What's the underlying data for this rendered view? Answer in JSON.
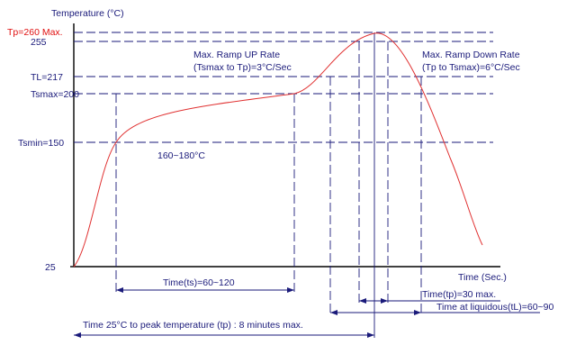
{
  "diagram": {
    "y_axis_title": "Temperature (°C)",
    "x_axis_title": "Time (Sec.)",
    "y_labels": {
      "tp": "Tp=260 Max.",
      "peak": "255",
      "tl": "TL=217",
      "tsmax": "Tsmax=200",
      "tsmin": "Tsmin=150",
      "base": "25"
    },
    "annotations": {
      "ramp_up_line1": "Max. Ramp UP Rate",
      "ramp_up_line2": "(Tsmax to Tp)=3°C/Sec",
      "ramp_down_line1": "Max. Ramp Down Rate",
      "ramp_down_line2": "(Tp to Tsmax)=6°C/Sec",
      "soak_range": "160~180°C"
    },
    "dimensions": {
      "ts": "Time(ts)=60~120",
      "tp": "Time(tp)=30 max.",
      "tl": "Time at liquidous(tL)=60~90",
      "total": "Time 25°C to peak temperature (tp) : 8 minutes max."
    },
    "colors": {
      "curve": "#e03030",
      "lines": "#1a1a7a",
      "tp_label": "#e01010"
    }
  }
}
